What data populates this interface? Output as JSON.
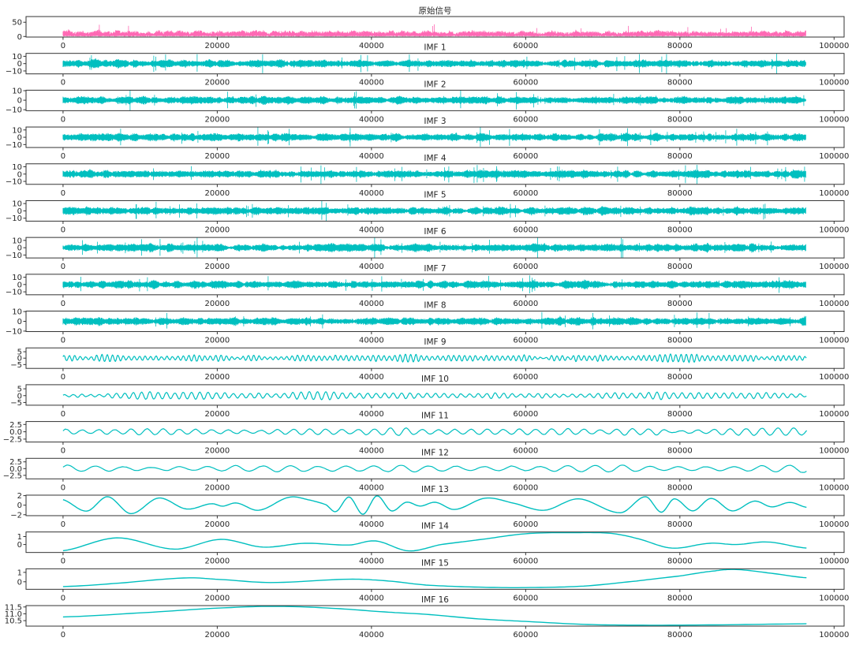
{
  "chart_data": {
    "type": "line",
    "layout": "stacked subplots, one column",
    "x_ticks": [
      0,
      20000,
      40000,
      60000,
      80000,
      100000
    ],
    "x_tick_labels": [
      "0",
      "20000",
      "40000",
      "60000",
      "80000",
      "100000"
    ],
    "xlim": [
      -4800,
      101300
    ],
    "x_data_range": [
      0,
      96400
    ],
    "grid": false,
    "colors": {
      "original": "#ff69b4",
      "imf": "#00bfbf"
    },
    "subplots": [
      {
        "title": "原始信号",
        "color": "#ff69b4",
        "ylim": [
          -2,
          70
        ],
        "yticks": [
          0,
          50
        ],
        "ytick_labels": [
          "0",
          "50"
        ],
        "kind": "dense"
      },
      {
        "title": "IMF 1",
        "color": "#00bfbf",
        "ylim": [
          -14,
          14
        ],
        "yticks": [
          10,
          0,
          -10
        ],
        "ytick_labels": [
          "10",
          "0",
          "−10"
        ],
        "kind": "dense"
      },
      {
        "title": "IMF 2",
        "color": "#00bfbf",
        "ylim": [
          -11,
          10.5
        ],
        "yticks": [
          10,
          0,
          -10
        ],
        "ytick_labels": [
          "10",
          "0",
          "−10"
        ],
        "kind": "dense"
      },
      {
        "title": "IMF 3",
        "color": "#00bfbf",
        "ylim": [
          -14,
          14
        ],
        "yticks": [
          10,
          0,
          -10
        ],
        "ytick_labels": [
          "10",
          "0",
          "−10"
        ],
        "kind": "dense"
      },
      {
        "title": "IMF 4",
        "color": "#00bfbf",
        "ylim": [
          -14,
          14
        ],
        "yticks": [
          10,
          0,
          -10
        ],
        "ytick_labels": [
          "10",
          "0",
          "−10"
        ],
        "kind": "dense"
      },
      {
        "title": "IMF 5",
        "color": "#00bfbf",
        "ylim": [
          -14,
          14
        ],
        "yticks": [
          10,
          0,
          -10
        ],
        "ytick_labels": [
          "10",
          "0",
          "−10"
        ],
        "kind": "dense"
      },
      {
        "title": "IMF 6",
        "color": "#00bfbf",
        "ylim": [
          -14,
          14
        ],
        "yticks": [
          10,
          0,
          -10
        ],
        "ytick_labels": [
          "10",
          "0",
          "−10"
        ],
        "kind": "dense"
      },
      {
        "title": "IMF 7",
        "color": "#00bfbf",
        "ylim": [
          -14,
          14
        ],
        "yticks": [
          10,
          0,
          -10
        ],
        "ytick_labels": [
          "10",
          "0",
          "−10"
        ],
        "kind": "dense"
      },
      {
        "title": "IMF 8",
        "color": "#00bfbf",
        "ylim": [
          -10.5,
          10.5
        ],
        "yticks": [
          10,
          0,
          -10
        ],
        "ytick_labels": [
          "10",
          "0",
          "−10"
        ],
        "kind": "dense"
      },
      {
        "title": "IMF 9",
        "color": "#00bfbf",
        "ylim": [
          -8,
          8
        ],
        "yticks": [
          5,
          0,
          -5
        ],
        "ytick_labels": [
          "5",
          "0",
          "−5"
        ],
        "kind": "oscillating"
      },
      {
        "title": "IMF 10",
        "color": "#00bfbf",
        "ylim": [
          -7,
          8
        ],
        "yticks": [
          5,
          0,
          -5
        ],
        "ytick_labels": [
          "5",
          "0",
          "−5"
        ],
        "kind": "oscillating"
      },
      {
        "title": "IMF 11",
        "color": "#00bfbf",
        "ylim": [
          -3.5,
          3.5
        ],
        "yticks": [
          2.5,
          0,
          -2.5
        ],
        "ytick_labels": [
          "2.5",
          "0.0",
          "−2.5"
        ],
        "kind": "oscillating"
      },
      {
        "title": "IMF 12",
        "color": "#00bfbf",
        "ylim": [
          -3.8,
          3.8
        ],
        "yticks": [
          2.5,
          0,
          -2.5
        ],
        "ytick_labels": [
          "2.5",
          "0.0",
          "−2.5"
        ],
        "kind": "oscillating"
      },
      {
        "title": "IMF 13",
        "color": "#00bfbf",
        "ylim": [
          -2.2,
          2.1
        ],
        "yticks": [
          2,
          0,
          -2
        ],
        "ytick_labels": [
          "2",
          "0",
          "−2"
        ],
        "kind": "smooth",
        "points": [
          [
            0,
            1.15
          ],
          [
            3070,
            -1.25
          ],
          [
            5800,
            1.78
          ],
          [
            8800,
            -1.78
          ],
          [
            12400,
            1.5
          ],
          [
            16000,
            -0.8
          ],
          [
            19250,
            0.3
          ],
          [
            20700,
            -0.2
          ],
          [
            22500,
            0.45
          ],
          [
            25400,
            -1.07
          ],
          [
            29300,
            1.65
          ],
          [
            32000,
            1.07
          ],
          [
            34100,
            0.1
          ],
          [
            35400,
            -1.33
          ],
          [
            37100,
            1.7
          ],
          [
            38900,
            -1.9
          ],
          [
            40700,
            1.95
          ],
          [
            42600,
            -1.2
          ],
          [
            44500,
            0.62
          ],
          [
            46300,
            -0.18
          ],
          [
            48300,
            0.6
          ],
          [
            50830,
            -0.9
          ],
          [
            54750,
            1.47
          ],
          [
            58330,
            0.45
          ],
          [
            62420,
            -1.07
          ],
          [
            66850,
            1.33
          ],
          [
            72300,
            -1.6
          ],
          [
            75540,
            1.78
          ],
          [
            77580,
            -1.47
          ],
          [
            79280,
            1.33
          ],
          [
            81670,
            -1.2
          ],
          [
            84050,
            1.42
          ],
          [
            86780,
            -1.2
          ],
          [
            89670,
            0.85
          ],
          [
            91890,
            -0.36
          ],
          [
            94280,
            0.58
          ],
          [
            96420,
            -0.45
          ]
        ]
      },
      {
        "title": "IMF 14",
        "color": "#00bfbf",
        "ylim": [
          -1.0,
          1.58
        ],
        "yticks": [
          1,
          0
        ],
        "ytick_labels": [
          "1",
          "0"
        ],
        "kind": "smooth",
        "points": [
          [
            0,
            -0.78
          ],
          [
            6980,
            0.84
          ],
          [
            14480,
            -0.58
          ],
          [
            20440,
            0.65
          ],
          [
            25900,
            -0.32
          ],
          [
            31350,
            0.16
          ],
          [
            37140,
            -0.06
          ],
          [
            40550,
            0.45
          ],
          [
            44800,
            -0.8
          ],
          [
            49060,
            0.0
          ],
          [
            53900,
            0.6
          ],
          [
            60000,
            1.36
          ],
          [
            65830,
            1.49
          ],
          [
            70940,
            1.42
          ],
          [
            74350,
            0.78
          ],
          [
            78940,
            -0.45
          ],
          [
            83880,
            0.16
          ],
          [
            87290,
            0.0
          ],
          [
            91380,
            0.32
          ],
          [
            96420,
            -0.45
          ]
        ]
      },
      {
        "title": "IMF 15",
        "color": "#00bfbf",
        "ylim": [
          -0.8,
          1.38
        ],
        "yticks": [
          1,
          0
        ],
        "ytick_labels": [
          "1",
          "0"
        ],
        "kind": "smooth",
        "points": [
          [
            0,
            -0.51
          ],
          [
            6470,
            -0.19
          ],
          [
            15670,
            0.4
          ],
          [
            19760,
            0.27
          ],
          [
            26920,
            -0.08
          ],
          [
            37140,
            0.27
          ],
          [
            42250,
            0.08
          ],
          [
            47060,
            -0.35
          ],
          [
            53900,
            -0.57
          ],
          [
            60000,
            -0.62
          ],
          [
            67530,
            -0.46
          ],
          [
            74350,
            0.08
          ],
          [
            80000,
            0.62
          ],
          [
            84570,
            1.16
          ],
          [
            87290,
            1.3
          ],
          [
            91380,
            0.95
          ],
          [
            96420,
            0.43
          ]
        ]
      },
      {
        "title": "IMF 16",
        "color": "#00bfbf",
        "ylim": [
          10.1,
          11.6
        ],
        "yticks": [
          11.5,
          11.0,
          10.5
        ],
        "ytick_labels": [
          "11.5",
          "11.0",
          "10.5"
        ],
        "kind": "smooth",
        "points": [
          [
            0,
            10.77
          ],
          [
            11580,
            11.12
          ],
          [
            21800,
            11.46
          ],
          [
            28620,
            11.54
          ],
          [
            35400,
            11.39
          ],
          [
            42250,
            11.12
          ],
          [
            47060,
            10.96
          ],
          [
            53900,
            10.63
          ],
          [
            60000,
            10.44
          ],
          [
            67530,
            10.23
          ],
          [
            74350,
            10.17
          ],
          [
            84570,
            10.19
          ],
          [
            96420,
            10.27
          ]
        ]
      }
    ]
  }
}
